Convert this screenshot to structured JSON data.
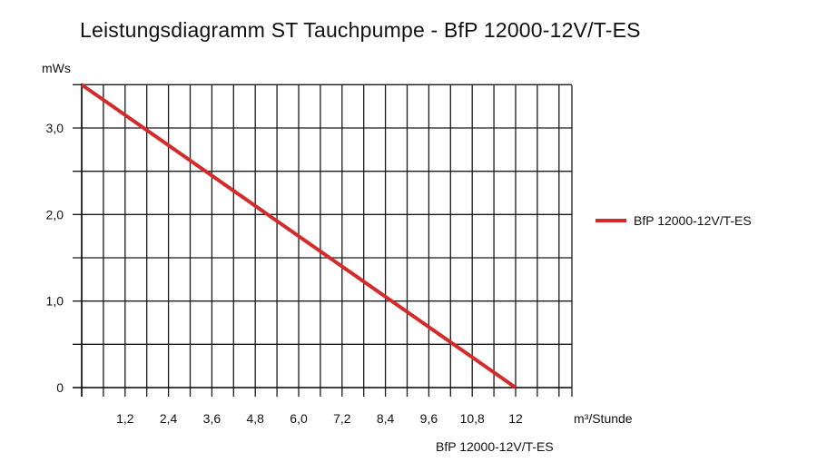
{
  "chart_data": {
    "type": "line",
    "title": "Leistungsdiagramm ST Tauchpumpe - BfP 12000-12V/T-ES",
    "ylabel": "mWs",
    "xlabel": "m³/Stunde",
    "xlim": [
      0,
      13.5
    ],
    "ylim": [
      0,
      3.5
    ],
    "x_ticks": [
      1.2,
      2.4,
      3.6,
      4.8,
      6.0,
      7.2,
      8.4,
      9.6,
      10.8,
      12
    ],
    "x_tick_labels": [
      "1,2",
      "2,4",
      "3,6",
      "4,8",
      "6,0",
      "7,2",
      "8,4",
      "9,6",
      "10,8",
      "12"
    ],
    "y_ticks": [
      0,
      1.0,
      2.0,
      3.0
    ],
    "y_tick_labels": [
      "0",
      "1,0",
      "2,0",
      "3,0"
    ],
    "grid": true,
    "legend_position": "right",
    "series": [
      {
        "name": "BfP 12000-12V/T-ES",
        "color": "#d42a2a",
        "x": [
          0,
          12
        ],
        "y": [
          3.5,
          0
        ]
      }
    ],
    "footer_label": "BfP 12000-12V/T-ES"
  }
}
